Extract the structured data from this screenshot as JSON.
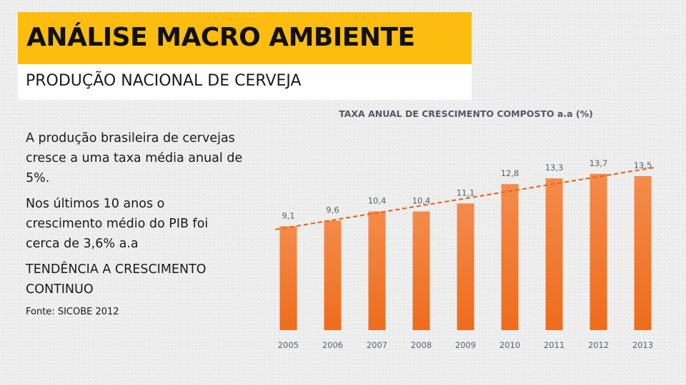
{
  "header": {
    "title": "ANÁLISE MACRO AMBIENTE",
    "subtitle": "PRODUÇÃO NACIONAL DE CERVEJA",
    "accent_color": "#fdbd10"
  },
  "text": {
    "paragraph_1": "A produção brasileira de cervejas cresce a uma taxa média anual de 5%.",
    "paragraph_2": "Nos últimos 10 anos o crescimento médio do PIB foi cerca de 3,6% a.a",
    "paragraph_3": "TENDÊNCIA A CRESCIMENTO CONTINUO",
    "source": "Fonte: SICOBE 2012"
  },
  "chart_data": {
    "type": "bar",
    "title": "TAXA ANUAL DE CRESCIMENTO COMPOSTO a.a (%)",
    "categories": [
      "2005",
      "2006",
      "2007",
      "2008",
      "2009",
      "2010",
      "2011",
      "2012",
      "2013"
    ],
    "values": [
      9.1,
      9.6,
      10.4,
      10.4,
      11.1,
      12.8,
      13.3,
      13.7,
      13.5
    ],
    "value_labels": [
      "9,1",
      "9,6",
      "10,4",
      "10,4",
      "11,1",
      "12,8",
      "13,3",
      "13,7",
      "13,5"
    ],
    "xlabel": "",
    "ylabel": "",
    "ylim": [
      0,
      14.5
    ],
    "trendline": "linear",
    "grid": false,
    "bar_color": "#f07a26",
    "trend_color": "#e8661e"
  }
}
